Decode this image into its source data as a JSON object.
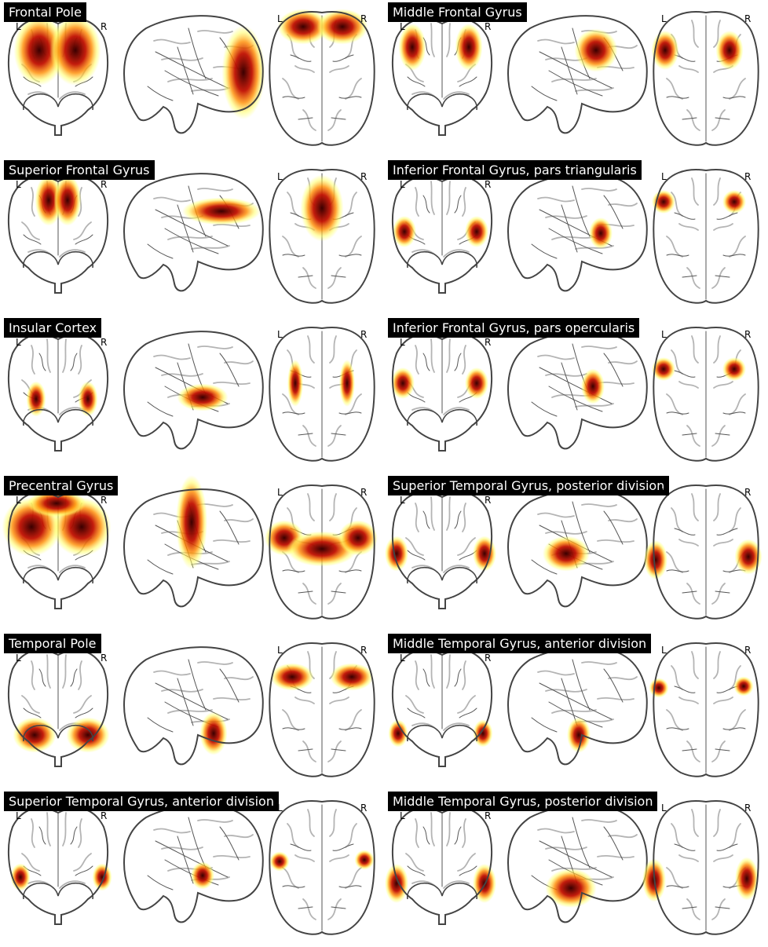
{
  "figure": {
    "view_labels": {
      "left": "L",
      "right": "R"
    },
    "panels": [
      {
        "title": "Frontal Pole",
        "region": "frontal-pole"
      },
      {
        "title": "Middle Frontal Gyrus",
        "region": "middle-frontal"
      },
      {
        "title": "Superior Frontal Gyrus",
        "region": "superior-frontal"
      },
      {
        "title": "Inferior Frontal Gyrus, pars triangularis",
        "region": "ifg-triangularis"
      },
      {
        "title": "Insular Cortex",
        "region": "insula"
      },
      {
        "title": "Inferior Frontal Gyrus, pars opercularis",
        "region": "ifg-opercularis"
      },
      {
        "title": "Precentral Gyrus",
        "region": "precentral"
      },
      {
        "title": "Superior Temporal Gyrus, posterior division",
        "region": "stg-posterior"
      },
      {
        "title": "Temporal Pole",
        "region": "temporal-pole"
      },
      {
        "title": "Middle Temporal Gyrus, anterior division",
        "region": "mtg-anterior"
      },
      {
        "title": "Superior Temporal Gyrus, anterior division",
        "region": "stg-anterior"
      },
      {
        "title": "Middle Temporal Gyrus, posterior division",
        "region": "mtg-posterior"
      }
    ],
    "colors": {
      "outline": "#444444",
      "sulci_light": "#b4b4b4",
      "sulci_dark": "#555555",
      "heat_low": "#ffff66",
      "heat_mid": "#ff8c00",
      "heat_high": "#c01000",
      "heat_peak": "#3a0000",
      "title_bg": "#000000",
      "title_fg": "#ffffff"
    }
  }
}
